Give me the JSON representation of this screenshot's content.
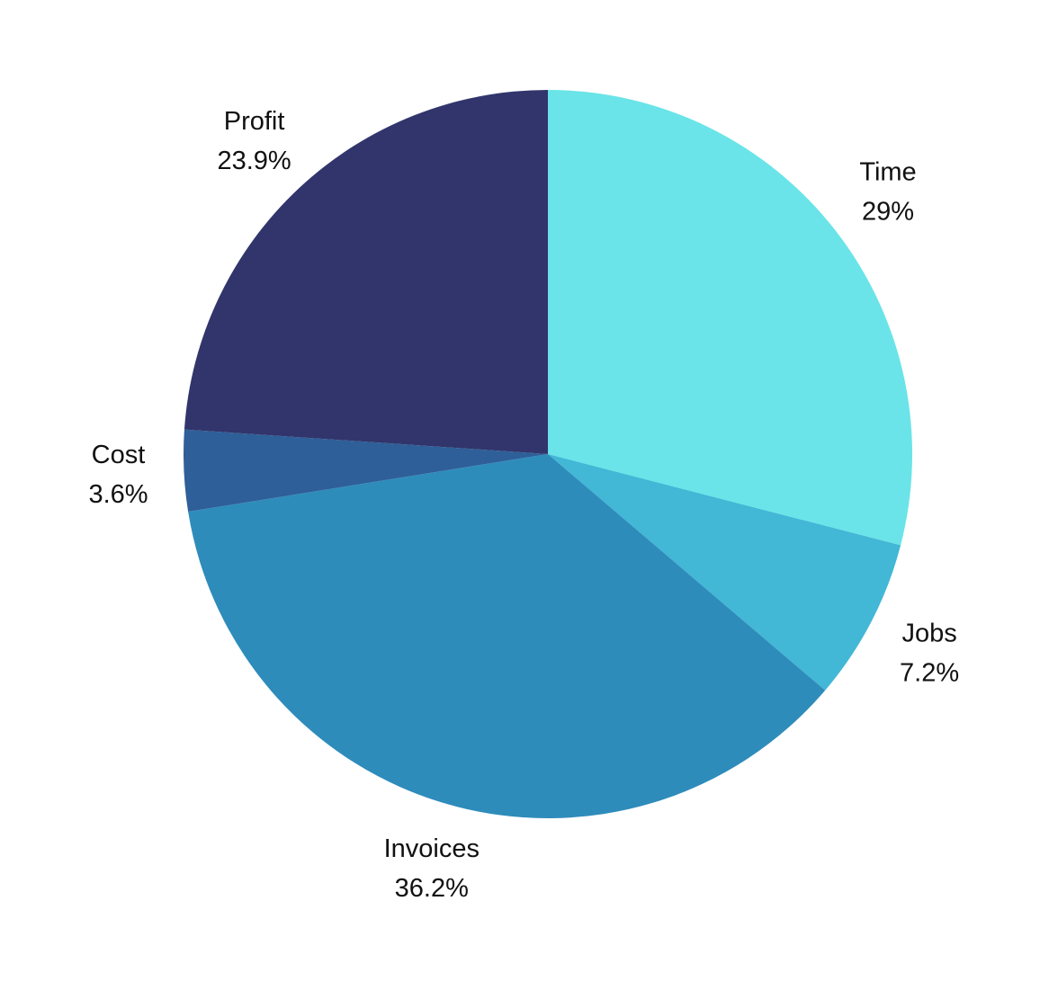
{
  "chart_data": {
    "type": "pie",
    "title": "",
    "slices": [
      {
        "label": "Time",
        "value": 29.0,
        "value_label": "29%",
        "color": "#6ae4e8"
      },
      {
        "label": "Jobs",
        "value": 7.2,
        "value_label": "7.2%",
        "color": "#42b7d6"
      },
      {
        "label": "Invoices",
        "value": 36.2,
        "value_label": "36.2%",
        "color": "#2e8cbb"
      },
      {
        "label": "Cost",
        "value": 3.6,
        "value_label": "3.6%",
        "color": "#2e5f98"
      },
      {
        "label": "Profit",
        "value": 23.9,
        "value_label": "23.9%",
        "color": "#31356c"
      }
    ],
    "start_angle_deg": 0,
    "direction": "clockwise",
    "legend": "none",
    "labels_placement": "outside"
  }
}
